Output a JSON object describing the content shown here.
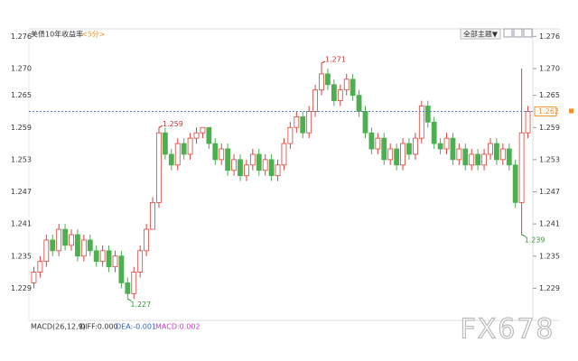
{
  "header": {
    "title": "美债10年收益率",
    "period": "<5分>",
    "button": "全部主题▼"
  },
  "chart_data": {
    "type": "candlestick",
    "up_color": "#e0403a",
    "down_color": "#4caf50",
    "open": [
      1.23,
      1.232,
      1.234,
      1.238,
      1.236,
      1.24,
      1.237,
      1.239,
      1.235,
      1.238,
      1.236,
      1.234,
      1.236,
      1.233,
      1.235,
      1.23,
      1.228,
      1.232,
      1.236,
      1.24,
      1.245,
      1.258,
      1.254,
      1.252,
      1.256,
      1.254,
      1.257,
      1.258,
      1.259,
      1.256,
      1.253,
      1.255,
      1.251,
      1.253,
      1.25,
      1.252,
      1.254,
      1.251,
      1.253,
      1.25,
      1.252,
      1.256,
      1.259,
      1.261,
      1.258,
      1.262,
      1.266,
      1.269,
      1.267,
      1.264,
      1.266,
      1.268,
      1.265,
      1.262,
      1.258,
      1.255,
      1.257,
      1.253,
      1.255,
      1.252,
      1.256,
      1.254,
      1.257,
      1.263,
      1.26,
      1.256,
      1.255,
      1.257,
      1.253,
      1.255,
      1.252,
      1.254,
      1.252,
      1.254,
      1.256,
      1.253,
      1.255,
      1.252,
      1.245,
      1.258
    ],
    "high": [
      1.233,
      1.235,
      1.239,
      1.239,
      1.241,
      1.241,
      1.24,
      1.24,
      1.239,
      1.239,
      1.237,
      1.237,
      1.237,
      1.236,
      1.236,
      1.231,
      1.233,
      1.237,
      1.241,
      1.246,
      1.259,
      1.259,
      1.255,
      1.257,
      1.257,
      1.258,
      1.259,
      1.259,
      1.259,
      1.257,
      1.256,
      1.256,
      1.254,
      1.254,
      1.253,
      1.255,
      1.255,
      1.254,
      1.254,
      1.253,
      1.257,
      1.26,
      1.262,
      1.262,
      1.263,
      1.267,
      1.271,
      1.27,
      1.268,
      1.267,
      1.269,
      1.269,
      1.266,
      1.263,
      1.259,
      1.258,
      1.258,
      1.256,
      1.256,
      1.257,
      1.257,
      1.258,
      1.264,
      1.264,
      1.261,
      1.257,
      1.258,
      1.258,
      1.256,
      1.256,
      1.255,
      1.255,
      1.255,
      1.257,
      1.257,
      1.256,
      1.256,
      1.253,
      1.27,
      1.263
    ],
    "low": [
      1.229,
      1.231,
      1.233,
      1.235,
      1.235,
      1.236,
      1.236,
      1.234,
      1.234,
      1.235,
      1.233,
      1.233,
      1.232,
      1.232,
      1.229,
      1.227,
      1.227,
      1.231,
      1.235,
      1.24,
      1.244,
      1.253,
      1.251,
      1.251,
      1.253,
      1.253,
      1.256,
      1.257,
      1.255,
      1.252,
      1.252,
      1.25,
      1.25,
      1.249,
      1.249,
      1.251,
      1.25,
      1.25,
      1.249,
      1.249,
      1.251,
      1.255,
      1.258,
      1.257,
      1.257,
      1.261,
      1.265,
      1.266,
      1.263,
      1.263,
      1.265,
      1.264,
      1.261,
      1.257,
      1.254,
      1.254,
      1.252,
      1.252,
      1.251,
      1.251,
      1.253,
      1.253,
      1.256,
      1.259,
      1.255,
      1.254,
      1.254,
      1.252,
      1.252,
      1.251,
      1.251,
      1.251,
      1.251,
      1.253,
      1.252,
      1.252,
      1.251,
      1.244,
      1.239,
      1.257
    ],
    "close": [
      1.232,
      1.234,
      1.238,
      1.236,
      1.24,
      1.237,
      1.239,
      1.235,
      1.238,
      1.236,
      1.234,
      1.236,
      1.233,
      1.235,
      1.23,
      1.228,
      1.232,
      1.236,
      1.24,
      1.245,
      1.258,
      1.254,
      1.252,
      1.256,
      1.254,
      1.257,
      1.258,
      1.259,
      1.256,
      1.253,
      1.255,
      1.251,
      1.253,
      1.25,
      1.252,
      1.254,
      1.251,
      1.253,
      1.25,
      1.252,
      1.256,
      1.259,
      1.261,
      1.258,
      1.262,
      1.266,
      1.269,
      1.267,
      1.264,
      1.266,
      1.268,
      1.265,
      1.262,
      1.258,
      1.255,
      1.257,
      1.253,
      1.255,
      1.252,
      1.256,
      1.254,
      1.257,
      1.263,
      1.26,
      1.256,
      1.255,
      1.257,
      1.253,
      1.255,
      1.252,
      1.254,
      1.252,
      1.254,
      1.256,
      1.253,
      1.255,
      1.252,
      1.245,
      1.258,
      1.262
    ],
    "high_labels": [
      1.271,
      1.259
    ],
    "low_labels": [
      1.227,
      1.239
    ],
    "last_price": 1.262,
    "ylim": [
      1.223,
      1.2774
    ],
    "yticks": [
      1.276,
      {
        "value": 1.27,
        "label": "1.270"
      },
      1.265,
      1.259,
      1.253,
      1.247,
      1.241,
      1.235,
      1.229
    ],
    "indicator": [
      "MACD(26,12,9)",
      "DIFF:0.000",
      "DEA:-0.001",
      "MACD:0.002"
    ]
  },
  "watermark": "FX678"
}
